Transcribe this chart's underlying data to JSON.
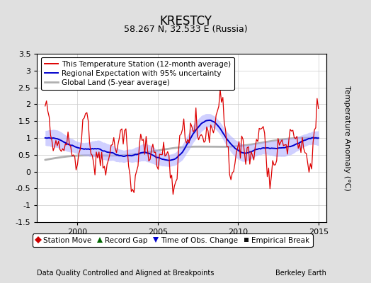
{
  "title": "KRESTCY",
  "subtitle": "58.267 N, 32.533 E (Russia)",
  "xlabel_left": "Data Quality Controlled and Aligned at Breakpoints",
  "xlabel_right": "Berkeley Earth",
  "ylabel": "Temperature Anomaly (°C)",
  "xlim": [
    1997.5,
    2015.5
  ],
  "ylim": [
    -1.5,
    3.5
  ],
  "yticks": [
    -1.5,
    -1.0,
    -0.5,
    0.0,
    0.5,
    1.0,
    1.5,
    2.0,
    2.5,
    3.0,
    3.5
  ],
  "xticks": [
    2000,
    2005,
    2010,
    2015
  ],
  "bg_color": "#e0e0e0",
  "plot_bg_color": "#ffffff",
  "red_color": "#dd0000",
  "blue_color": "#0000cc",
  "blue_fill_color": "#aaaaff",
  "gray_color": "#b0b0b0",
  "title_fontsize": 12,
  "subtitle_fontsize": 9,
  "legend_fontsize": 7.5,
  "tick_fontsize": 8,
  "footnote_fontsize": 7
}
